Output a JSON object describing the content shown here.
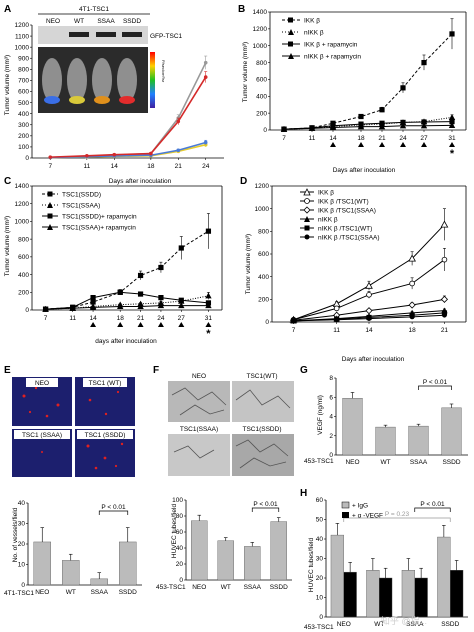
{
  "panels": {
    "A": {
      "letter": "A",
      "header": "4T1-TSC1",
      "blot_lanes": [
        "NEO",
        "WT",
        "SSAA",
        "SSDD"
      ],
      "blot_label": "GFP-TSC1",
      "colorbar_label": "P/sec/cm²/sr",
      "mouse_colors": [
        "#3a6ee6",
        "#d9c93a",
        "#e0901c",
        "#e32c2c"
      ]
    },
    "B": {
      "letter": "B"
    },
    "C": {
      "letter": "C"
    },
    "D": {
      "letter": "D"
    },
    "E": {
      "letter": "E",
      "image_labels": [
        "NEO",
        "TSC1 (WT)",
        "TSC1 (SSAA)",
        "TSC1 (SSDD)"
      ]
    },
    "F": {
      "letter": "F",
      "image_labels": [
        "NEO",
        "TSC1(WT)",
        "TSC1(SSAA)",
        "TSC1(SSDD)"
      ]
    },
    "G": {
      "letter": "G"
    },
    "H": {
      "letter": "H"
    }
  },
  "watermark": "知乎 @指...",
  "chart_data": [
    {
      "id": "A",
      "type": "line",
      "title": "",
      "xlabel": "Days after inoculation",
      "ylabel": "Tumor volume (mm³)",
      "x": [
        7,
        11,
        14,
        18,
        21,
        24
      ],
      "xlim": [
        5,
        26
      ],
      "ylim": [
        0,
        1200
      ],
      "yticks": [
        0,
        100,
        200,
        300,
        400,
        500,
        600,
        700,
        800,
        900,
        1000,
        1100,
        1200
      ],
      "series": [
        {
          "name": "NEO",
          "color": "#999999",
          "values": [
            5,
            15,
            25,
            40,
            360,
            860
          ],
          "err": [
            0,
            0,
            8,
            10,
            30,
            60
          ]
        },
        {
          "name": "WT",
          "color": "#e6cc2e",
          "values": [
            5,
            10,
            15,
            20,
            60,
            120
          ],
          "err": [
            0,
            0,
            5,
            5,
            10,
            20
          ]
        },
        {
          "name": "SSAA",
          "color": "#4a7bd6",
          "values": [
            5,
            12,
            18,
            25,
            70,
            140
          ],
          "err": [
            0,
            0,
            5,
            5,
            10,
            20
          ]
        },
        {
          "name": "SSDD",
          "color": "#d42a2a",
          "values": [
            8,
            20,
            30,
            40,
            330,
            730
          ],
          "err": [
            0,
            0,
            8,
            10,
            30,
            50
          ]
        }
      ]
    },
    {
      "id": "B",
      "type": "line",
      "title": "",
      "xlabel": "Days after inoculation",
      "ylabel": "Tumor volume (mm³)",
      "x": [
        7,
        11,
        14,
        18,
        21,
        24,
        27,
        31
      ],
      "ylim": [
        0,
        1400
      ],
      "yticks": [
        0,
        200,
        400,
        600,
        800,
        1000,
        1200,
        1400
      ],
      "markers_below_x": [
        14,
        18,
        21,
        24,
        27,
        31
      ],
      "star_at": 31,
      "series": [
        {
          "name": "IKK β",
          "style": "dashed",
          "marker": "square",
          "values": [
            10,
            25,
            80,
            160,
            240,
            500,
            800,
            1140
          ],
          "err": [
            0,
            0,
            10,
            20,
            30,
            60,
            90,
            180
          ]
        },
        {
          "name": "nIKK β",
          "style": "dotted",
          "marker": "triangle",
          "values": [
            10,
            20,
            40,
            60,
            70,
            90,
            100,
            150
          ],
          "err": [
            0,
            0,
            5,
            8,
            10,
            15,
            15,
            30
          ]
        },
        {
          "name": "IKK β + rapamycin",
          "style": "solid",
          "marker": "square",
          "values": [
            10,
            25,
            50,
            70,
            80,
            90,
            95,
            100
          ],
          "err": [
            0,
            0,
            5,
            8,
            10,
            12,
            12,
            15
          ]
        },
        {
          "name": "nIKK β + rapamycin",
          "style": "solid",
          "marker": "triangle",
          "values": [
            10,
            20,
            30,
            40,
            40,
            50,
            50,
            55
          ],
          "err": [
            0,
            0,
            5,
            5,
            5,
            8,
            8,
            10
          ]
        }
      ]
    },
    {
      "id": "C",
      "type": "line",
      "title": "",
      "xlabel": "days after inoculation",
      "ylabel": "Tumor volume (mm³)",
      "x": [
        7,
        11,
        14,
        18,
        21,
        24,
        27,
        31
      ],
      "ylim": [
        0,
        1400
      ],
      "yticks": [
        0,
        200,
        400,
        600,
        800,
        1000,
        1200,
        1400
      ],
      "markers_below_x": [
        14,
        18,
        21,
        24,
        27,
        31
      ],
      "star_at": 31,
      "series": [
        {
          "name": "TSC1(SSDD)",
          "style": "dashed",
          "marker": "square",
          "values": [
            10,
            30,
            90,
            200,
            390,
            480,
            700,
            890
          ],
          "err": [
            0,
            0,
            15,
            30,
            50,
            60,
            130,
            200
          ]
        },
        {
          "name": "TSC1(SSAA)",
          "style": "dotted",
          "marker": "triangle",
          "values": [
            10,
            20,
            40,
            60,
            70,
            80,
            100,
            160
          ],
          "err": [
            0,
            0,
            8,
            10,
            12,
            15,
            20,
            40
          ]
        },
        {
          "name": "TSC1(SSDD)+ rapamycin",
          "style": "solid",
          "marker": "square",
          "values": [
            10,
            30,
            140,
            200,
            180,
            140,
            110,
            80
          ],
          "err": [
            0,
            0,
            20,
            30,
            25,
            20,
            20,
            15
          ]
        },
        {
          "name": "TSC1(SSAA)+ rapamycin",
          "style": "solid",
          "marker": "triangle",
          "values": [
            10,
            20,
            30,
            40,
            40,
            50,
            50,
            50
          ],
          "err": [
            0,
            0,
            5,
            5,
            5,
            8,
            8,
            10
          ]
        }
      ]
    },
    {
      "id": "D",
      "type": "line",
      "title": "",
      "xlabel": "Days after inoculation",
      "ylabel": "Tumor volume (mm³)",
      "x": [
        7,
        11,
        14,
        18,
        21
      ],
      "ylim": [
        0,
        1200
      ],
      "yticks": [
        0,
        200,
        400,
        600,
        800,
        1000,
        1200
      ],
      "series": [
        {
          "name": "IKK β",
          "marker": "triangle-open",
          "values": [
            20,
            160,
            320,
            560,
            860
          ],
          "err": [
            0,
            20,
            40,
            60,
            140
          ]
        },
        {
          "name": "IKK β /TSC1(WT)",
          "marker": "circle-open",
          "values": [
            20,
            120,
            240,
            340,
            550
          ],
          "err": [
            0,
            20,
            30,
            50,
            100
          ]
        },
        {
          "name": "IKK β /TSC1(SSAA)",
          "marker": "diamond-open",
          "values": [
            15,
            60,
            100,
            150,
            200
          ],
          "err": [
            0,
            10,
            15,
            20,
            30
          ]
        },
        {
          "name": "nIKK β",
          "marker": "triangle",
          "values": [
            10,
            30,
            50,
            80,
            100
          ],
          "err": [
            0,
            5,
            8,
            10,
            15
          ]
        },
        {
          "name": "nIKK β /TSC1(WT)",
          "marker": "square",
          "values": [
            10,
            25,
            40,
            60,
            80
          ],
          "err": [
            0,
            5,
            8,
            10,
            12
          ]
        },
        {
          "name": "nIKK β /TSC1(SSAA)",
          "marker": "circle",
          "values": [
            10,
            20,
            30,
            45,
            60
          ],
          "err": [
            0,
            5,
            5,
            8,
            10
          ]
        }
      ]
    },
    {
      "id": "E",
      "type": "bar",
      "title": "",
      "xlabel": "",
      "ylabel": "No. of vessels/field",
      "group_label": "4T1-TSC1",
      "categories": [
        "NEO",
        "WT",
        "SSAA",
        "SSDD"
      ],
      "values": [
        21,
        12,
        3,
        21
      ],
      "err": [
        7,
        3,
        3,
        7
      ],
      "ylim": [
        0,
        40
      ],
      "yticks": [
        0,
        10,
        20,
        30,
        40
      ],
      "annotation": {
        "text": "P < 0.01",
        "between": [
          "SSAA",
          "SSDD"
        ]
      }
    },
    {
      "id": "F",
      "type": "bar",
      "title": "",
      "xlabel": "",
      "ylabel": "HUVEC tubes/field",
      "group_label": "453-TSC1",
      "categories": [
        "NEO",
        "WT",
        "SSAA",
        "SSDD"
      ],
      "values": [
        74,
        49,
        42,
        73
      ],
      "err": [
        7,
        4,
        5,
        5
      ],
      "ylim": [
        0,
        100
      ],
      "yticks": [
        0,
        20,
        40,
        60,
        80,
        100
      ],
      "annotation": {
        "text": "P < 0.01",
        "between": [
          "SSAA",
          "SSDD"
        ]
      }
    },
    {
      "id": "G",
      "type": "bar",
      "title": "",
      "xlabel": "",
      "ylabel": "VEGF (ng/ml)",
      "group_label": "453-TSC1",
      "categories": [
        "NEO",
        "WT",
        "SSAA",
        "SSDD"
      ],
      "values": [
        5.9,
        2.9,
        3.0,
        4.9
      ],
      "err": [
        0.6,
        0.2,
        0.2,
        0.4
      ],
      "ylim": [
        0,
        8
      ],
      "yticks": [
        0,
        2,
        4,
        6,
        8
      ],
      "annotation": {
        "text": "P < 0.01",
        "between": [
          "SSAA",
          "SSDD"
        ]
      }
    },
    {
      "id": "H",
      "type": "bar",
      "title": "",
      "xlabel": "",
      "ylabel": "HUVEC tubes/field",
      "group_label": "453-TSC1",
      "categories": [
        "NEO",
        "WT",
        "SSAA",
        "SSDD"
      ],
      "ylim": [
        0,
        60
      ],
      "yticks": [
        0,
        10,
        20,
        30,
        40,
        50,
        60
      ],
      "series": [
        {
          "name": "+ IgG",
          "color": "#bbbbbb",
          "values": [
            42,
            24,
            24,
            41
          ],
          "err": [
            6,
            6,
            6,
            6
          ]
        },
        {
          "name": "+ α -VEGF",
          "color": "#000000",
          "values": [
            23,
            20,
            20,
            24
          ],
          "err": [
            5,
            5,
            5,
            5
          ]
        }
      ],
      "annotations": [
        {
          "text": "P = 0.23",
          "between": [
            "NEO",
            "SSDD"
          ]
        },
        {
          "text": "P < 0.01",
          "between": [
            "SSAA",
            "SSDD"
          ]
        }
      ]
    }
  ]
}
